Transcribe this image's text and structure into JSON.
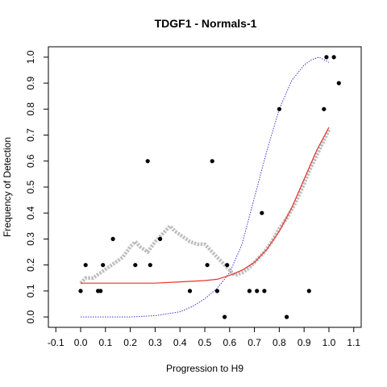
{
  "chart_data": {
    "type": "scatter",
    "title": "TDGF1 - Normals-1",
    "xlabel": "Progression to H9",
    "ylabel": "Frequency of Detection",
    "xlim": [
      -0.13,
      1.13
    ],
    "ylim": [
      -0.04,
      1.04
    ],
    "xticks": [
      "-0.1",
      "0.0",
      "0.1",
      "0.2",
      "0.3",
      "0.4",
      "0.5",
      "0.6",
      "0.7",
      "0.8",
      "0.9",
      "1.0",
      "1.1"
    ],
    "yticks": [
      "0.0",
      "0.1",
      "0.2",
      "0.3",
      "0.4",
      "0.5",
      "0.6",
      "0.7",
      "0.8",
      "0.9",
      "1.0"
    ],
    "grid": false,
    "colors": {
      "points": "#000000",
      "running_mean": "#bebebe",
      "red_fit": "#e8312f",
      "blue_fit": "#3b3bd6"
    },
    "series": [
      {
        "type": "scatter",
        "points": [
          [
            0.0,
            0.1
          ],
          [
            0.02,
            0.2
          ],
          [
            0.07,
            0.1
          ],
          [
            0.08,
            0.1
          ],
          [
            0.09,
            0.2
          ],
          [
            0.13,
            0.3
          ],
          [
            0.22,
            0.2
          ],
          [
            0.27,
            0.6
          ],
          [
            0.28,
            0.2
          ],
          [
            0.32,
            0.3
          ],
          [
            0.44,
            0.1
          ],
          [
            0.51,
            0.2
          ],
          [
            0.53,
            0.6
          ],
          [
            0.55,
            0.1
          ],
          [
            0.58,
            0.0
          ],
          [
            0.59,
            0.2
          ],
          [
            0.68,
            0.1
          ],
          [
            0.71,
            0.1
          ],
          [
            0.73,
            0.4
          ],
          [
            0.74,
            0.1
          ],
          [
            0.8,
            0.8
          ],
          [
            0.83,
            0.0
          ],
          [
            0.92,
            0.1
          ],
          [
            0.98,
            0.8
          ],
          [
            0.99,
            1.0
          ],
          [
            1.02,
            1.0
          ],
          [
            1.04,
            0.9
          ]
        ]
      },
      {
        "type": "line",
        "style": "thick-dotted",
        "points": [
          [
            0.0,
            0.13
          ],
          [
            0.02,
            0.15
          ],
          [
            0.05,
            0.15
          ],
          [
            0.08,
            0.17
          ],
          [
            0.11,
            0.19
          ],
          [
            0.14,
            0.21
          ],
          [
            0.17,
            0.23
          ],
          [
            0.2,
            0.27
          ],
          [
            0.22,
            0.29
          ],
          [
            0.24,
            0.27
          ],
          [
            0.27,
            0.25
          ],
          [
            0.3,
            0.29
          ],
          [
            0.33,
            0.32
          ],
          [
            0.36,
            0.35
          ],
          [
            0.38,
            0.33
          ],
          [
            0.41,
            0.31
          ],
          [
            0.44,
            0.29
          ],
          [
            0.47,
            0.28
          ],
          [
            0.5,
            0.28
          ],
          [
            0.53,
            0.25
          ],
          [
            0.56,
            0.22
          ],
          [
            0.59,
            0.19
          ],
          [
            0.62,
            0.16
          ],
          [
            0.65,
            0.17
          ],
          [
            0.68,
            0.19
          ],
          [
            0.71,
            0.22
          ],
          [
            0.74,
            0.25
          ],
          [
            0.77,
            0.29
          ],
          [
            0.8,
            0.34
          ],
          [
            0.83,
            0.38
          ],
          [
            0.86,
            0.43
          ],
          [
            0.89,
            0.49
          ],
          [
            0.92,
            0.56
          ],
          [
            0.95,
            0.62
          ],
          [
            0.98,
            0.68
          ],
          [
            1.0,
            0.72
          ]
        ]
      },
      {
        "type": "line",
        "style": "solid",
        "points": [
          [
            0.0,
            0.13
          ],
          [
            0.1,
            0.13
          ],
          [
            0.2,
            0.13
          ],
          [
            0.3,
            0.13
          ],
          [
            0.4,
            0.135
          ],
          [
            0.5,
            0.14
          ],
          [
            0.55,
            0.145
          ],
          [
            0.6,
            0.16
          ],
          [
            0.65,
            0.18
          ],
          [
            0.7,
            0.21
          ],
          [
            0.75,
            0.26
          ],
          [
            0.8,
            0.33
          ],
          [
            0.85,
            0.42
          ],
          [
            0.9,
            0.53
          ],
          [
            0.95,
            0.64
          ],
          [
            1.0,
            0.73
          ]
        ]
      },
      {
        "type": "line",
        "style": "dotted",
        "points": [
          [
            0.0,
            0.0
          ],
          [
            0.2,
            0.0
          ],
          [
            0.3,
            0.005
          ],
          [
            0.4,
            0.02
          ],
          [
            0.45,
            0.04
          ],
          [
            0.5,
            0.07
          ],
          [
            0.55,
            0.11
          ],
          [
            0.6,
            0.17
          ],
          [
            0.65,
            0.28
          ],
          [
            0.7,
            0.46
          ],
          [
            0.75,
            0.64
          ],
          [
            0.8,
            0.8
          ],
          [
            0.85,
            0.91
          ],
          [
            0.9,
            0.97
          ],
          [
            0.93,
            0.99
          ],
          [
            0.96,
            1.0
          ],
          [
            1.0,
            0.98
          ]
        ]
      }
    ]
  }
}
